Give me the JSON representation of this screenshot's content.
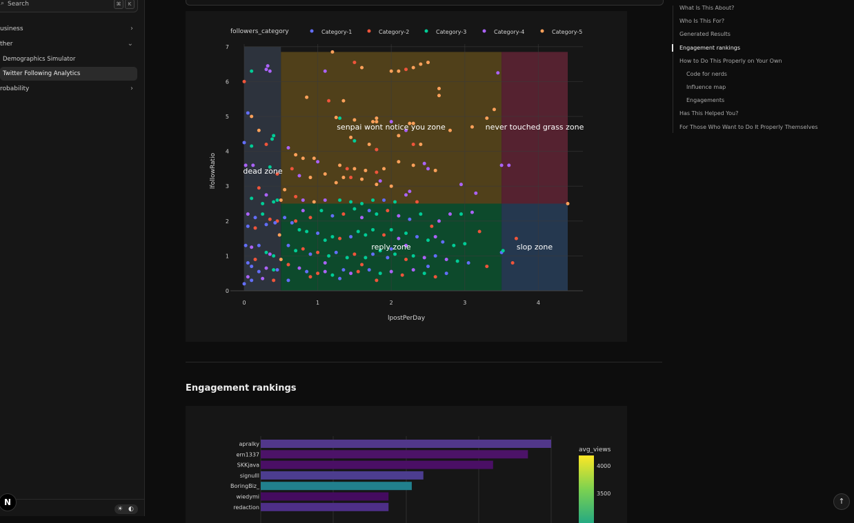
{
  "sidebar": {
    "search_label": "Search",
    "search_key1": "⌘",
    "search_key2": "K",
    "items": [
      {
        "label": "usiness"
      },
      {
        "label": "ther"
      },
      {
        "label": "Demographics Simulator"
      },
      {
        "label": "Twitter Following Analytics"
      },
      {
        "label": "robability"
      }
    ],
    "logo": "N",
    "theme_light": "☀",
    "theme_dark": "◐"
  },
  "toc": {
    "items": [
      {
        "label": "What Is This About?"
      },
      {
        "label": "Who Is This For?"
      },
      {
        "label": "Generated Results"
      },
      {
        "label": "Engagement rankings"
      },
      {
        "label": "How to Do This Properly on Your Own"
      },
      {
        "label": "Code for nerds"
      },
      {
        "label": "Influence map"
      },
      {
        "label": "Engagements"
      },
      {
        "label": "Has This Helped You?"
      },
      {
        "label": "For Those Who Want to Do It Properly Themselves"
      }
    ],
    "active": "Engagement rankings"
  },
  "main": {
    "section_title": "Engagement rankings",
    "scroll_top_icon": "↑"
  },
  "chart_data": [
    {
      "type": "scatter",
      "xlabel": "lpostPerDay",
      "ylabel": "lfollowRatio",
      "xlim": [
        -0.1,
        4.6
      ],
      "ylim": [
        -0.1,
        7.0
      ],
      "xticks": [
        "0",
        "1",
        "2",
        "3",
        "4"
      ],
      "yticks": [
        "0",
        "1",
        "2",
        "3",
        "4",
        "5",
        "6",
        "7"
      ],
      "legend_title": "followers_category",
      "legend_position": "top",
      "series": [
        {
          "name": "Category-1",
          "color": "#636efa"
        },
        {
          "name": "Category-2",
          "color": "#ef553b"
        },
        {
          "name": "Category-3",
          "color": "#00cc96"
        },
        {
          "name": "Category-4",
          "color": "#ab63fa"
        },
        {
          "name": "Category-5",
          "color": "#ffa15a"
        }
      ],
      "zones": [
        {
          "label": "dead zone",
          "x0": 0,
          "x1": 0.5,
          "y0": 0,
          "y1": 7,
          "color": "#2d333d"
        },
        {
          "label": "senpai wont notice you zone",
          "x0": 0.5,
          "x1": 3.5,
          "y0": 2.5,
          "y1": 6.85,
          "color": "#50401a"
        },
        {
          "label": "never touched grass zone",
          "x0": 3.5,
          "x1": 4.4,
          "y0": 2.5,
          "y1": 6.85,
          "color": "#552230"
        },
        {
          "label": "reply zone",
          "x0": 0.5,
          "x1": 3.5,
          "y0": 0,
          "y1": 2.5,
          "color": "#0d4a2c"
        },
        {
          "label": "slop zone",
          "x0": 3.5,
          "x1": 4.4,
          "y0": 0,
          "y1": 2.5,
          "color": "#25384f"
        }
      ],
      "points": [
        [
          0.0,
          6.0,
          1
        ],
        [
          0.1,
          6.3,
          2
        ],
        [
          0.3,
          6.35,
          3
        ],
        [
          0.32,
          6.45,
          3
        ],
        [
          0.35,
          6.3,
          3
        ],
        [
          0.05,
          5.1,
          0
        ],
        [
          0.1,
          5.0,
          4
        ],
        [
          0.2,
          4.6,
          4
        ],
        [
          0.0,
          4.25,
          0
        ],
        [
          0.1,
          4.15,
          2
        ],
        [
          0.3,
          4.2,
          1
        ],
        [
          0.38,
          4.35,
          2
        ],
        [
          0.4,
          4.45,
          2
        ],
        [
          0.02,
          3.6,
          3
        ],
        [
          0.12,
          3.6,
          3
        ],
        [
          0.35,
          3.55,
          2
        ],
        [
          0.45,
          3.35,
          1
        ],
        [
          0.2,
          2.95,
          1
        ],
        [
          0.3,
          2.75,
          3
        ],
        [
          0.1,
          2.65,
          2
        ],
        [
          0.25,
          2.5,
          2
        ],
        [
          0.4,
          2.55,
          2
        ],
        [
          0.45,
          2.6,
          2
        ],
        [
          0.05,
          2.2,
          3
        ],
        [
          0.15,
          2.1,
          0
        ],
        [
          0.25,
          2.2,
          2
        ],
        [
          0.35,
          2.05,
          1
        ],
        [
          0.45,
          2.0,
          1
        ],
        [
          0.05,
          1.85,
          0
        ],
        [
          0.15,
          1.8,
          1
        ],
        [
          0.3,
          1.9,
          0
        ],
        [
          0.42,
          1.95,
          0
        ],
        [
          0.02,
          1.3,
          0
        ],
        [
          0.1,
          1.25,
          3
        ],
        [
          0.2,
          1.3,
          0
        ],
        [
          0.3,
          1.1,
          2
        ],
        [
          0.35,
          1.05,
          3
        ],
        [
          0.4,
          1.0,
          2
        ],
        [
          0.15,
          0.9,
          1
        ],
        [
          0.05,
          0.8,
          0
        ],
        [
          0.1,
          0.7,
          0
        ],
        [
          0.2,
          0.55,
          0
        ],
        [
          0.3,
          0.65,
          3
        ],
        [
          0.4,
          0.6,
          2
        ],
        [
          0.45,
          0.6,
          0
        ],
        [
          0.05,
          0.4,
          3
        ],
        [
          0.1,
          0.3,
          0
        ],
        [
          0.25,
          0.35,
          3
        ],
        [
          0.4,
          0.3,
          1
        ],
        [
          0.0,
          0.2,
          0
        ],
        [
          0.5,
          0.9,
          4
        ],
        [
          0.48,
          1.6,
          4
        ],
        [
          0.5,
          2.6,
          4
        ],
        [
          1.2,
          6.85,
          4
        ],
        [
          1.5,
          6.55,
          1
        ],
        [
          1.6,
          6.4,
          4
        ],
        [
          1.1,
          6.3,
          3
        ],
        [
          2.0,
          6.3,
          4
        ],
        [
          2.1,
          6.3,
          4
        ],
        [
          2.2,
          6.35,
          1
        ],
        [
          2.3,
          6.4,
          4
        ],
        [
          2.4,
          6.5,
          4
        ],
        [
          2.5,
          6.55,
          4
        ],
        [
          3.45,
          6.25,
          3
        ],
        [
          2.65,
          5.8,
          4
        ],
        [
          2.65,
          5.6,
          4
        ],
        [
          0.85,
          5.55,
          4
        ],
        [
          1.35,
          5.45,
          4
        ],
        [
          1.15,
          5.45,
          1
        ],
        [
          1.3,
          4.95,
          2
        ],
        [
          1.25,
          4.97,
          4
        ],
        [
          1.5,
          4.9,
          4
        ],
        [
          1.75,
          4.85,
          4
        ],
        [
          1.8,
          4.85,
          4
        ],
        [
          1.8,
          4.95,
          4
        ],
        [
          2.0,
          4.85,
          3
        ],
        [
          2.25,
          4.8,
          4
        ],
        [
          2.3,
          4.8,
          4
        ],
        [
          2.2,
          4.6,
          3
        ],
        [
          2.8,
          4.6,
          4
        ],
        [
          3.3,
          4.95,
          4
        ],
        [
          3.4,
          5.2,
          4
        ],
        [
          3.1,
          4.7,
          4
        ],
        [
          1.45,
          4.4,
          4
        ],
        [
          1.5,
          4.3,
          2
        ],
        [
          1.7,
          4.2,
          4
        ],
        [
          1.8,
          4.05,
          1
        ],
        [
          2.1,
          4.45,
          4
        ],
        [
          2.3,
          4.2,
          1
        ],
        [
          2.4,
          4.2,
          4
        ],
        [
          0.6,
          4.1,
          3
        ],
        [
          0.7,
          3.9,
          4
        ],
        [
          0.8,
          3.8,
          4
        ],
        [
          0.95,
          3.8,
          4
        ],
        [
          1.0,
          3.7,
          3
        ],
        [
          1.3,
          3.6,
          4
        ],
        [
          1.4,
          3.5,
          1
        ],
        [
          1.5,
          3.5,
          4
        ],
        [
          1.65,
          3.45,
          4
        ],
        [
          1.8,
          3.4,
          1
        ],
        [
          1.9,
          3.5,
          4
        ],
        [
          2.1,
          3.7,
          4
        ],
        [
          2.3,
          3.6,
          4
        ],
        [
          2.45,
          3.65,
          3
        ],
        [
          2.5,
          3.5,
          3
        ],
        [
          2.6,
          3.45,
          4
        ],
        [
          0.65,
          3.5,
          1
        ],
        [
          0.75,
          3.3,
          3
        ],
        [
          0.9,
          3.25,
          4
        ],
        [
          1.1,
          3.35,
          4
        ],
        [
          1.25,
          3.1,
          4
        ],
        [
          1.35,
          3.25,
          4
        ],
        [
          1.45,
          3.25,
          1
        ],
        [
          1.6,
          3.2,
          4
        ],
        [
          1.8,
          3.05,
          4
        ],
        [
          1.85,
          3.15,
          3
        ],
        [
          2.0,
          3.0,
          4
        ],
        [
          2.2,
          2.75,
          3
        ],
        [
          2.25,
          2.85,
          3
        ],
        [
          2.95,
          3.05,
          3
        ],
        [
          3.15,
          2.8,
          3
        ],
        [
          3.5,
          3.6,
          3
        ],
        [
          3.6,
          3.6,
          3
        ],
        [
          4.4,
          2.5,
          4
        ],
        [
          0.55,
          2.9,
          4
        ],
        [
          0.7,
          2.7,
          1
        ],
        [
          0.8,
          2.6,
          3
        ],
        [
          0.95,
          2.55,
          4
        ],
        [
          1.1,
          2.6,
          3
        ],
        [
          1.3,
          2.6,
          2
        ],
        [
          1.45,
          2.55,
          2
        ],
        [
          1.6,
          2.5,
          2
        ],
        [
          1.75,
          2.6,
          2
        ],
        [
          1.9,
          2.6,
          0
        ],
        [
          2.05,
          2.55,
          2
        ],
        [
          2.35,
          2.55,
          1
        ],
        [
          2.8,
          2.2,
          3
        ],
        [
          2.95,
          2.2,
          2
        ],
        [
          3.1,
          2.25,
          3
        ],
        [
          0.55,
          2.1,
          0
        ],
        [
          0.65,
          1.95,
          0
        ],
        [
          0.75,
          1.75,
          2
        ],
        [
          0.85,
          1.7,
          2
        ],
        [
          1.0,
          1.65,
          0
        ],
        [
          1.1,
          1.45,
          2
        ],
        [
          1.2,
          1.55,
          2
        ],
        [
          1.3,
          1.5,
          1
        ],
        [
          1.45,
          1.55,
          0
        ],
        [
          1.55,
          1.7,
          2
        ],
        [
          1.65,
          1.6,
          2
        ],
        [
          1.75,
          1.75,
          2
        ],
        [
          1.9,
          1.6,
          1
        ],
        [
          2.0,
          1.75,
          2
        ],
        [
          2.1,
          1.5,
          3
        ],
        [
          2.2,
          1.65,
          2
        ],
        [
          2.35,
          1.55,
          0
        ],
        [
          2.5,
          1.45,
          2
        ],
        [
          2.6,
          1.55,
          3
        ],
        [
          2.7,
          1.4,
          0
        ],
        [
          2.85,
          1.3,
          2
        ],
        [
          3.0,
          1.35,
          2
        ],
        [
          3.2,
          1.7,
          1
        ],
        [
          0.6,
          1.3,
          0
        ],
        [
          0.7,
          1.15,
          2
        ],
        [
          0.8,
          1.2,
          1
        ],
        [
          0.9,
          1.05,
          0
        ],
        [
          1.0,
          1.1,
          1
        ],
        [
          1.15,
          1.0,
          2
        ],
        [
          1.25,
          1.1,
          0
        ],
        [
          1.4,
          0.95,
          2
        ],
        [
          1.5,
          1.05,
          1
        ],
        [
          1.65,
          0.95,
          2
        ],
        [
          1.75,
          1.05,
          0
        ],
        [
          1.85,
          1.15,
          2
        ],
        [
          1.95,
          0.95,
          0
        ],
        [
          2.05,
          1.05,
          2
        ],
        [
          2.2,
          0.9,
          1
        ],
        [
          2.3,
          1.0,
          2
        ],
        [
          2.45,
          0.95,
          3
        ],
        [
          2.6,
          1.0,
          0
        ],
        [
          2.75,
          0.9,
          3
        ],
        [
          2.9,
          0.85,
          2
        ],
        [
          3.05,
          0.8,
          0
        ],
        [
          3.3,
          0.7,
          1
        ],
        [
          0.6,
          0.75,
          1
        ],
        [
          0.75,
          0.65,
          3
        ],
        [
          0.85,
          0.55,
          0
        ],
        [
          1.0,
          0.5,
          1
        ],
        [
          1.1,
          0.55,
          3
        ],
        [
          1.2,
          0.45,
          2
        ],
        [
          1.35,
          0.6,
          0
        ],
        [
          1.45,
          0.5,
          3
        ],
        [
          1.55,
          0.55,
          1
        ],
        [
          1.7,
          0.6,
          0
        ],
        [
          1.85,
          0.5,
          2
        ],
        [
          2.0,
          0.55,
          3
        ],
        [
          2.15,
          0.45,
          1
        ],
        [
          2.3,
          0.6,
          3
        ],
        [
          2.45,
          0.5,
          2
        ],
        [
          2.6,
          0.4,
          1
        ],
        [
          2.75,
          0.5,
          0
        ],
        [
          0.6,
          0.3,
          0
        ],
        [
          0.9,
          0.4,
          1
        ],
        [
          1.3,
          0.35,
          0
        ],
        [
          1.8,
          0.3,
          1
        ],
        [
          3.5,
          1.1,
          0
        ],
        [
          3.52,
          1.15,
          2
        ],
        [
          3.7,
          1.5,
          1
        ],
        [
          3.65,
          0.8,
          1
        ],
        [
          2.0,
          1.2,
          0
        ],
        [
          2.2,
          1.3,
          3
        ],
        [
          1.1,
          0.8,
          3
        ],
        [
          1.6,
          0.75,
          1
        ],
        [
          2.5,
          0.7,
          0
        ],
        [
          0.7,
          2.0,
          1
        ],
        [
          0.8,
          2.3,
          3
        ],
        [
          0.9,
          2.1,
          1
        ],
        [
          1.05,
          2.3,
          2
        ],
        [
          1.2,
          2.15,
          0
        ],
        [
          1.35,
          2.2,
          1
        ],
        [
          1.5,
          2.35,
          2
        ],
        [
          1.6,
          2.1,
          3
        ],
        [
          1.7,
          2.3,
          0
        ],
        [
          1.8,
          2.2,
          2
        ],
        [
          1.95,
          2.3,
          1
        ],
        [
          2.1,
          2.15,
          3
        ],
        [
          2.25,
          2.05,
          0
        ],
        [
          2.4,
          2.2,
          2
        ],
        [
          2.55,
          1.85,
          1
        ],
        [
          2.65,
          2.0,
          3
        ]
      ]
    },
    {
      "type": "bar",
      "orientation": "horizontal",
      "categories": [
        "apralky",
        "ern1337",
        "SKKjava",
        "signulll",
        "BoringBiz_",
        "wiedymi",
        "redaction"
      ],
      "values": [
        100,
        92,
        80,
        56,
        52,
        44,
        44
      ],
      "colors": [
        "#51378a",
        "#4c1368",
        "#4a0f65",
        "#4c3d8f",
        "#21808d",
        "#440b5f",
        "#4e2f88"
      ],
      "colorbar_title": "avg_views",
      "colorbar_ticks": [
        "4000",
        "3500"
      ]
    }
  ]
}
